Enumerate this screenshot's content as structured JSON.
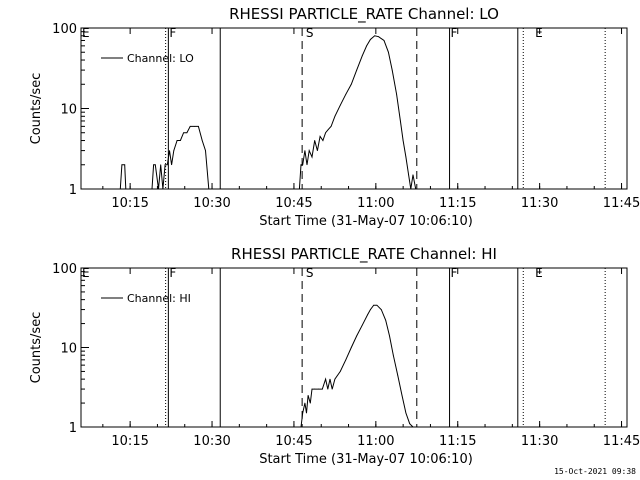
{
  "footer_timestamp": "15-Oct-2021 09:38",
  "chart_data": [
    {
      "type": "line",
      "title": "RHESSI PARTICLE_RATE Channel: LO",
      "xlabel": "Start Time (31-May-07 10:06:10)",
      "ylabel": "Counts/sec",
      "y_scale": "log",
      "ylim": [
        1,
        100
      ],
      "xlim": [
        "10:06",
        "11:46"
      ],
      "x_ticks": [
        "10:15",
        "10:30",
        "10:45",
        "11:00",
        "11:15",
        "11:30",
        "11:45"
      ],
      "y_ticks": [
        "1",
        "10",
        "100"
      ],
      "grid": false,
      "legend_placement": "top-left",
      "series": [
        {
          "name": "Channel: LO",
          "x": [
            "10:13.2",
            "10:13.5",
            "10:14.0",
            "10:14.2",
            "10:19.0",
            "10:19.3",
            "10:19.6",
            "10:20.2",
            "10:20.6",
            "10:21.0",
            "10:21.4",
            "10:21.8",
            "10:22.2",
            "10:22.6",
            "10:23.0",
            "10:23.6",
            "10:24.2",
            "10:24.8",
            "10:25.4",
            "10:26.0",
            "10:26.8",
            "10:27.5",
            "10:28.2",
            "10:28.8",
            "10:29.4",
            "10:46.0",
            "10:46.3",
            "10:46.6",
            "10:47.0",
            "10:47.4",
            "10:47.8",
            "10:48.3",
            "10:48.8",
            "10:49.3",
            "10:49.8",
            "10:50.3",
            "10:50.8",
            "10:51.3",
            "10:51.8",
            "10:52.5",
            "10:53.5",
            "10:54.5",
            "10:55.5",
            "10:56.5",
            "10:57.5",
            "10:58.3",
            "10:59.0",
            "10:59.8",
            "11:00.5",
            "11:01.5",
            "11:02.3",
            "11:03.0",
            "11:03.8",
            "11:04.5",
            "11:05.0",
            "11:05.5",
            "11:06.0",
            "11:06.4",
            "11:06.8",
            "11:07.3",
            "11:07.8"
          ],
          "y": [
            1,
            2,
            2,
            1,
            1,
            2,
            2,
            1,
            2,
            1,
            2,
            2,
            3,
            2,
            3,
            4,
            4,
            5,
            5,
            6,
            6,
            6,
            4,
            3,
            1,
            1,
            2,
            2,
            3,
            2,
            3,
            2.5,
            4,
            3,
            4.5,
            4,
            5,
            5.5,
            6,
            8,
            11,
            15,
            20,
            30,
            45,
            60,
            72,
            80,
            78,
            70,
            50,
            30,
            15,
            7,
            4,
            2.5,
            1.5,
            1,
            1.5,
            1,
            1
          ]
        }
      ],
      "annotations": [
        {
          "label": "E",
          "x": "10:06"
        },
        {
          "label": "F",
          "x": "10:22"
        },
        {
          "label": "S",
          "x": "10:47"
        },
        {
          "label": "F",
          "x": "11:13.5"
        },
        {
          "label": "E",
          "x": "11:29"
        }
      ],
      "vlines": [
        {
          "x": "10:21.5",
          "style": "dotted"
        },
        {
          "x": "10:22",
          "style": "solid"
        },
        {
          "x": "10:31.5",
          "style": "solid"
        },
        {
          "x": "10:46.5",
          "style": "dashed"
        },
        {
          "x": "11:07.5",
          "style": "dashed"
        },
        {
          "x": "11:13.5",
          "style": "solid"
        },
        {
          "x": "11:26",
          "style": "solid"
        },
        {
          "x": "11:27",
          "style": "dotted"
        },
        {
          "x": "11:42",
          "style": "dotted"
        }
      ]
    },
    {
      "type": "line",
      "title": "RHESSI PARTICLE_RATE Channel: HI",
      "xlabel": "Start Time (31-May-07 10:06:10)",
      "ylabel": "Counts/sec",
      "y_scale": "log",
      "ylim": [
        1,
        100
      ],
      "xlim": [
        "10:06",
        "11:46"
      ],
      "x_ticks": [
        "10:15",
        "10:30",
        "10:45",
        "11:00",
        "11:15",
        "11:30",
        "11:45"
      ],
      "y_ticks": [
        "1",
        "10",
        "100"
      ],
      "grid": false,
      "legend_placement": "top-left",
      "series": [
        {
          "name": "Channel: HI",
          "x": [
            "10:46.3",
            "10:46.6",
            "10:47.0",
            "10:47.3",
            "10:47.6",
            "10:48.0",
            "10:48.3",
            "10:48.8",
            "10:49.5",
            "10:50.2",
            "10:50.8",
            "10:51.2",
            "10:51.6",
            "10:52.0",
            "10:52.5",
            "10:53.5",
            "10:54.5",
            "10:55.5",
            "10:56.5",
            "10:57.5",
            "10:58.5",
            "10:59.0",
            "10:59.6",
            "11:00.2",
            "11:01.0",
            "11:01.8",
            "11:02.5",
            "11:03.2",
            "11:04.0",
            "11:04.8",
            "11:05.5",
            "11:06.2",
            "11:06.8"
          ],
          "y": [
            1,
            1.5,
            2,
            1.5,
            2.5,
            2,
            3,
            3,
            3,
            3,
            4,
            3,
            4,
            3,
            4,
            5,
            7,
            10,
            14,
            19,
            26,
            30,
            34,
            34,
            30,
            22,
            14,
            8,
            4.5,
            2.5,
            1.5,
            1.1,
            1
          ]
        }
      ],
      "annotations": [
        {
          "label": "E",
          "x": "10:06"
        },
        {
          "label": "F",
          "x": "10:22"
        },
        {
          "label": "S",
          "x": "10:47"
        },
        {
          "label": "F",
          "x": "11:13.5"
        },
        {
          "label": "E",
          "x": "11:29"
        }
      ],
      "vlines": [
        {
          "x": "10:21.5",
          "style": "dotted"
        },
        {
          "x": "10:22",
          "style": "solid"
        },
        {
          "x": "10:31.5",
          "style": "solid"
        },
        {
          "x": "10:46.5",
          "style": "dashed"
        },
        {
          "x": "11:07.5",
          "style": "dashed"
        },
        {
          "x": "11:13.5",
          "style": "solid"
        },
        {
          "x": "11:26",
          "style": "solid"
        },
        {
          "x": "11:27",
          "style": "dotted"
        },
        {
          "x": "11:42",
          "style": "dotted"
        }
      ]
    }
  ]
}
